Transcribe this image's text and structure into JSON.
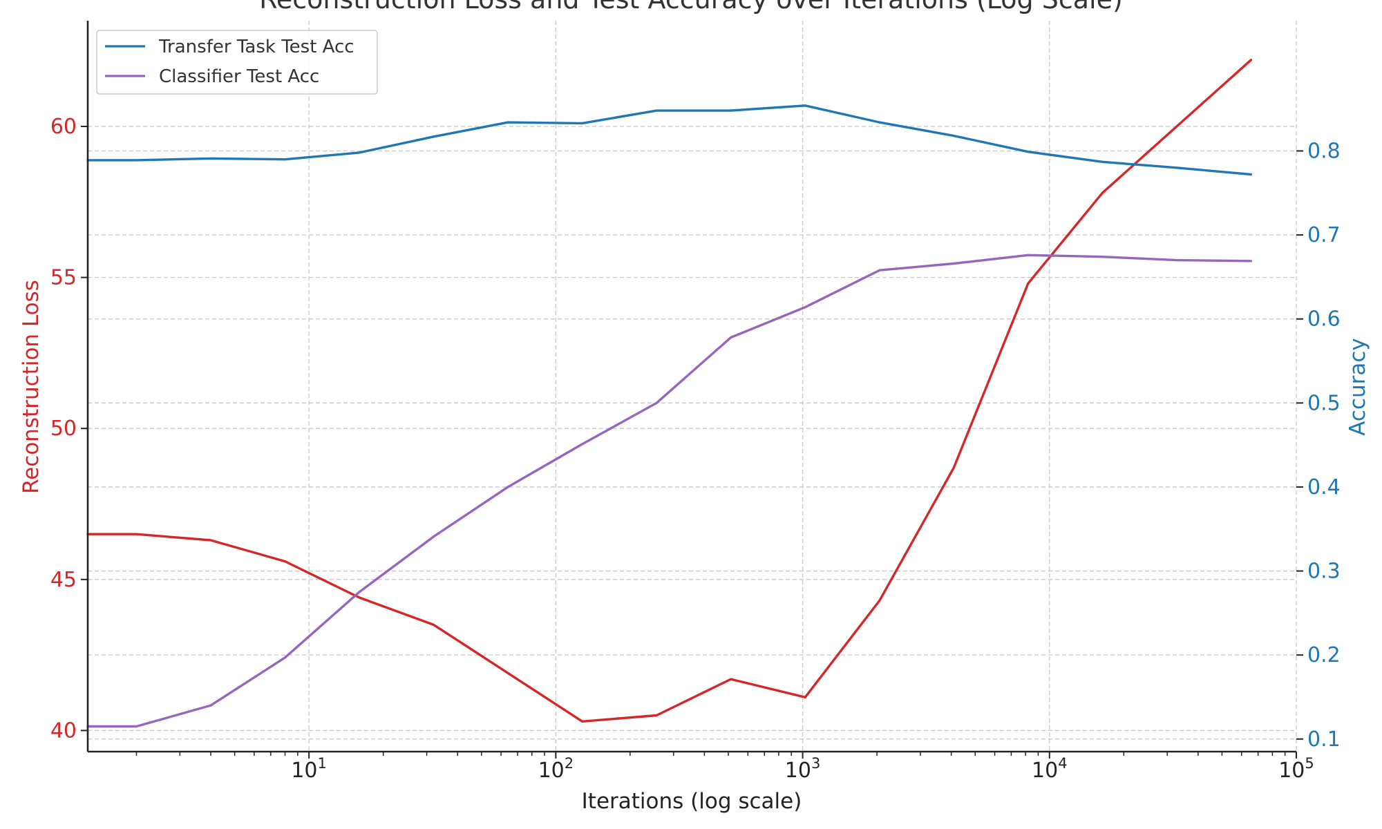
{
  "chart_data": {
    "type": "line",
    "title": "Reconstruction Loss and Test Accuracy over Iterations (Log Scale)",
    "xlabel": "Iterations (log scale)",
    "ylabel_left": "Reconstruction Loss",
    "ylabel_right": "Accuracy",
    "x_scale": "log",
    "xlim": [
      1.27,
      100000
    ],
    "ylim_left": [
      39.3,
      63.5
    ],
    "ylim_right": [
      0.085,
      0.955
    ],
    "x_ticks": [
      {
        "value": 10,
        "base": "10",
        "exp": "1"
      },
      {
        "value": 100,
        "base": "10",
        "exp": "2"
      },
      {
        "value": 1000,
        "base": "10",
        "exp": "3"
      },
      {
        "value": 10000,
        "base": "10",
        "exp": "4"
      },
      {
        "value": 100000,
        "base": "10",
        "exp": "5"
      }
    ],
    "y_ticks_left": [
      40,
      45,
      50,
      55,
      60
    ],
    "y_ticks_left_labels": [
      "40",
      "45",
      "50",
      "55",
      "60"
    ],
    "y_ticks_right": [
      0.1,
      0.2,
      0.3,
      0.4,
      0.5,
      0.6,
      0.7,
      0.8
    ],
    "y_ticks_right_labels": [
      "0.1",
      "0.2",
      "0.3",
      "0.4",
      "0.5",
      "0.6",
      "0.7",
      "0.8"
    ],
    "grid": true,
    "legend_position": "top-left",
    "colors": {
      "loss": "#d62728",
      "transfer": "#1f77b4",
      "classifier": "#9467bd",
      "left_axis_text": "#d62728",
      "right_axis_text": "#1f77b4"
    },
    "series": [
      {
        "name": "",
        "axis": "left",
        "color": "#d62728",
        "x": [
          1,
          2,
          4,
          8,
          16,
          32,
          64,
          128,
          256,
          512,
          1024,
          2048,
          4096,
          8192,
          16384,
          32768,
          65536
        ],
        "y": [
          46.5,
          46.5,
          46.3,
          45.6,
          44.4,
          43.5,
          41.9,
          40.3,
          40.5,
          41.7,
          41.1,
          44.3,
          48.7,
          54.8,
          57.8,
          60.0,
          62.2
        ]
      },
      {
        "name": "Transfer Task Test Acc",
        "axis": "right",
        "color": "#1f77b4",
        "x": [
          1,
          2,
          4,
          8,
          16,
          32,
          64,
          128,
          256,
          512,
          1024,
          2048,
          4096,
          8192,
          16384,
          32768,
          65536
        ],
        "y": [
          0.789,
          0.789,
          0.791,
          0.79,
          0.798,
          0.817,
          0.834,
          0.833,
          0.848,
          0.848,
          0.854,
          0.834,
          0.818,
          0.799,
          0.787,
          0.78,
          0.772
        ]
      },
      {
        "name": "Classifier Test Acc",
        "axis": "right",
        "color": "#9467bd",
        "x": [
          1,
          2,
          4,
          8,
          16,
          32,
          64,
          128,
          256,
          512,
          1024,
          2048,
          4096,
          8192,
          16384,
          32768,
          65536
        ],
        "y": [
          0.115,
          0.115,
          0.14,
          0.197,
          0.275,
          0.341,
          0.4,
          0.451,
          0.5,
          0.578,
          0.614,
          0.658,
          0.666,
          0.676,
          0.674,
          0.67,
          0.669
        ]
      }
    ]
  }
}
